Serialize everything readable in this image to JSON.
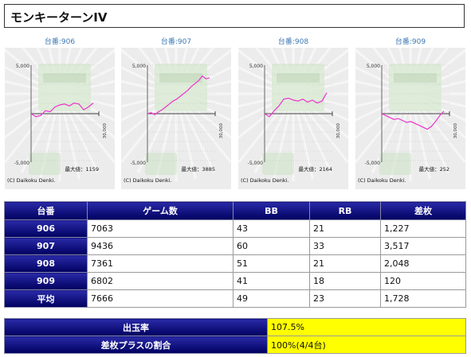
{
  "page_title": "モンキーターンIV",
  "charts": [
    {
      "link": "台番:906",
      "y_top": "5,000",
      "y_bottom": "-5,000",
      "x_label": "30,000",
      "max_text": "最大値：1159",
      "copyright": "(C) Daikoku Denki.",
      "series": [
        0,
        -300,
        -200,
        300,
        200,
        700,
        900,
        1000,
        800,
        1100,
        1000,
        400,
        700,
        1100
      ]
    },
    {
      "link": "台番:907",
      "y_top": "5,000",
      "y_bottom": "-5,000",
      "x_label": "30,000",
      "max_text": "最大値：3885",
      "copyright": "(C) Daikoku Denki.",
      "series": [
        0,
        100,
        -100,
        200,
        400,
        700,
        1000,
        1300,
        1500,
        1800,
        2100,
        2400,
        2800,
        3100,
        3400,
        3885,
        3600,
        3700
      ]
    },
    {
      "link": "台番:908",
      "y_top": "5,000",
      "y_bottom": "-5,000",
      "x_label": "30,000",
      "max_text": "最大値：2164",
      "copyright": "(C) Daikoku Denki.",
      "series": [
        0,
        -300,
        300,
        800,
        1500,
        1600,
        1400,
        1300,
        1500,
        1200,
        1400,
        1100,
        1300,
        2164
      ]
    },
    {
      "link": "台番:909",
      "y_top": "5,000",
      "y_bottom": "-5,000",
      "x_label": "30,000",
      "max_text": "最大値：252",
      "copyright": "(C) Daikoku Denki.",
      "series": [
        0,
        -200,
        -400,
        -600,
        -500,
        -700,
        -900,
        -800,
        -1000,
        -1200,
        -1400,
        -1600,
        -1300,
        -800,
        -200,
        252
      ]
    }
  ],
  "table": {
    "headers": [
      "台番",
      "ゲーム数",
      "BB",
      "RB",
      "差枚"
    ],
    "rows": [
      {
        "id": "906",
        "games": "7063",
        "bb": "43",
        "rb": "21",
        "diff": "1,227"
      },
      {
        "id": "907",
        "games": "9436",
        "bb": "60",
        "rb": "33",
        "diff": "3,517"
      },
      {
        "id": "908",
        "games": "7361",
        "bb": "51",
        "rb": "21",
        "diff": "2,048"
      },
      {
        "id": "909",
        "games": "6802",
        "bb": "41",
        "rb": "18",
        "diff": "120"
      },
      {
        "id": "平均",
        "games": "7666",
        "bb": "49",
        "rb": "23",
        "diff": "1,728"
      }
    ]
  },
  "rate": {
    "payout_label": "出玉率",
    "payout_value": "107.5%",
    "plus_label": "差枚プラスの割合",
    "plus_value": "100%(4/4台)"
  },
  "colors": {
    "line": "#ee33cc",
    "link": "#3c78b4",
    "header_bg": "#000070",
    "highlight": "#ffff00"
  }
}
